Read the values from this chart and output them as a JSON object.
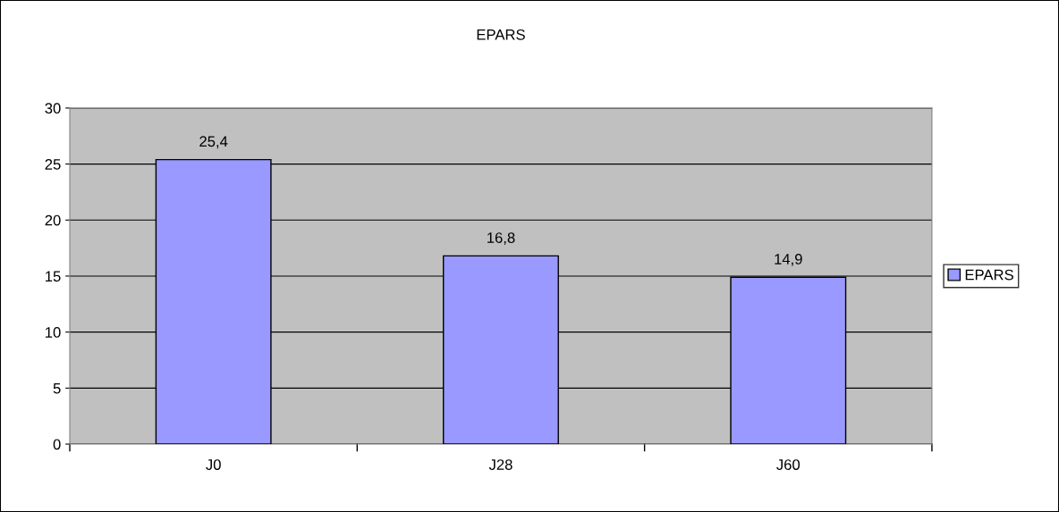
{
  "chart_data": {
    "type": "bar",
    "title": "EPARS",
    "categories": [
      "J0",
      "J28",
      "J60"
    ],
    "series": [
      {
        "name": "EPARS",
        "color": "#9999ff",
        "values": [
          25.4,
          16.8,
          14.9
        ],
        "value_labels": [
          "25,4",
          "16,8",
          "14,9"
        ]
      }
    ],
    "ylim": [
      0,
      30
    ],
    "yticks": [
      0,
      5,
      10,
      15,
      20,
      25,
      30
    ],
    "grid": "y",
    "legend": "right"
  }
}
